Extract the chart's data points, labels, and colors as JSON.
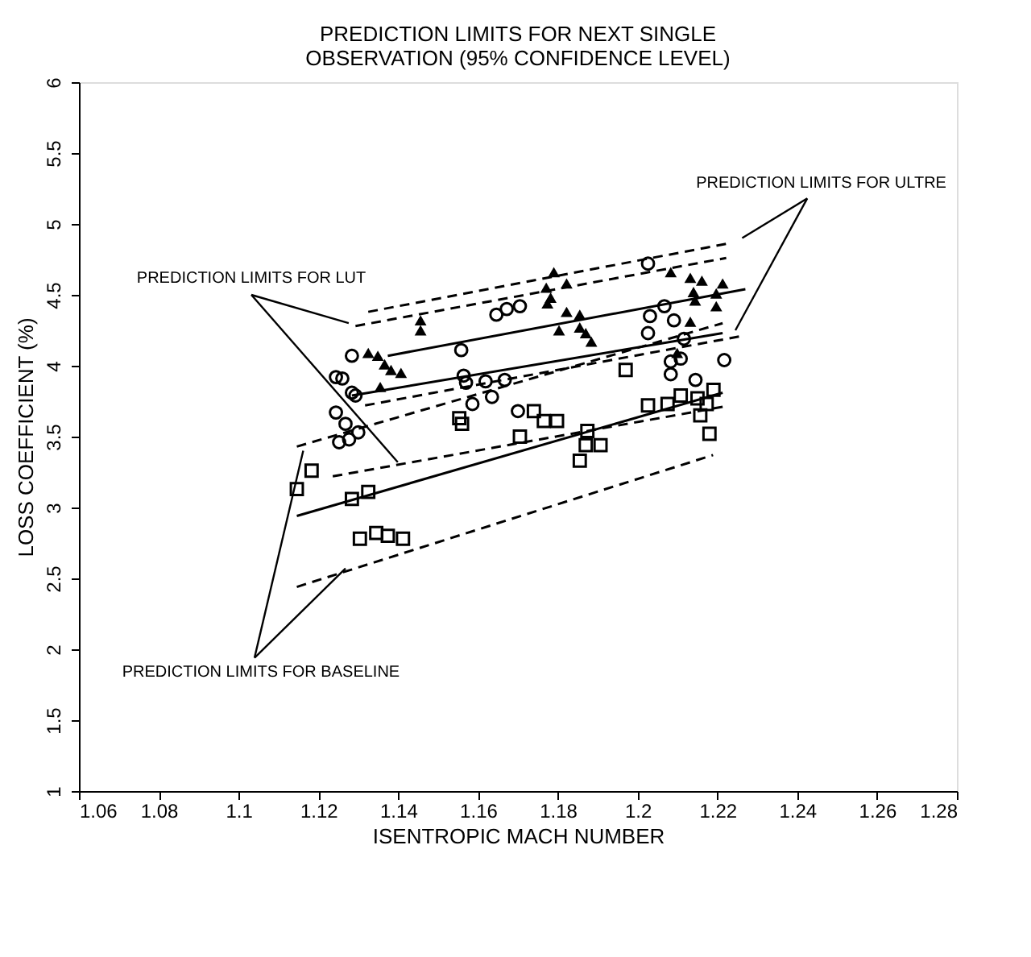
{
  "chart_data": {
    "type": "scatter",
    "title": "PREDICTION LIMITS FOR NEXT SINGLE\nOBSERVATION (95% CONFIDENCE LEVEL)",
    "xlabel": "ISENTROPIC MACH NUMBER",
    "ylabel": "LOSS COEFFICIENT (%)",
    "xlim": [
      1.06,
      1.28
    ],
    "ylim": [
      1,
      6
    ],
    "xticks": [
      1.06,
      1.08,
      1.1,
      1.12,
      1.14,
      1.16,
      1.18,
      1.2,
      1.22,
      1.24,
      1.26,
      1.28
    ],
    "yticks": [
      1,
      1.5,
      2,
      2.5,
      3,
      3.5,
      4,
      4.5,
      5,
      5.5,
      6
    ],
    "grid": false,
    "annotations": [
      {
        "text": "PREDICTION LIMITS FOR ULTRE",
        "x": 1.2245,
        "y": 4.25
      },
      {
        "text": "PREDICTION LIMITS FOR LUT",
        "x": 1.1399,
        "y": 3.32
      },
      {
        "text": "PREDICTION LIMITS FOR BASELINE",
        "x": 1.1268,
        "y": 2.57
      }
    ],
    "series": [
      {
        "type": "scatter",
        "marker": "square",
        "color": "#000000",
        "x": [
          1.1146,
          1.1183,
          1.1284,
          1.1325,
          1.1304,
          1.1345,
          1.1374,
          1.1412,
          1.1553,
          1.156,
          1.1705,
          1.174,
          1.1765,
          1.1798,
          1.1855,
          1.187,
          1.1907,
          1.1874,
          1.197,
          1.2026,
          1.2075,
          1.2108,
          1.215,
          1.2157,
          1.218,
          1.2173,
          1.219
        ],
        "values": [
          3.13,
          3.26,
          3.06,
          3.11,
          2.78,
          2.82,
          2.8,
          2.78,
          3.63,
          3.59,
          3.5,
          3.68,
          3.61,
          3.61,
          3.33,
          3.44,
          3.44,
          3.54,
          3.97,
          3.72,
          3.73,
          3.79,
          3.77,
          3.65,
          3.52,
          3.73,
          3.83
        ]
      },
      {
        "type": "scatter",
        "marker": "circle",
        "color": "#000000",
        "x": [
          1.1284,
          1.1244,
          1.126,
          1.1284,
          1.1293,
          1.1244,
          1.1268,
          1.1252,
          1.1277,
          1.13,
          1.1558,
          1.1564,
          1.157,
          1.1586,
          1.1619,
          1.1635,
          1.1667,
          1.1646,
          1.1672,
          1.1705,
          1.17,
          1.2026,
          1.2031,
          1.2067,
          1.2026,
          1.2091,
          1.2083,
          1.2083,
          1.2108,
          1.2116,
          1.2145,
          1.2217
        ],
        "values": [
          4.07,
          3.92,
          3.91,
          3.81,
          3.79,
          3.67,
          3.59,
          3.46,
          3.48,
          3.53,
          4.11,
          3.93,
          3.88,
          3.73,
          3.89,
          3.78,
          3.9,
          4.36,
          4.4,
          4.42,
          3.68,
          4.72,
          4.35,
          4.42,
          4.23,
          4.32,
          4.03,
          3.94,
          4.05,
          4.19,
          3.9,
          4.04
        ]
      },
      {
        "type": "scatter",
        "marker": "triangle",
        "color": "#000000",
        "x": [
          1.1325,
          1.1349,
          1.1366,
          1.1382,
          1.1407,
          1.1355,
          1.1456,
          1.1456,
          1.179,
          1.1771,
          1.1782,
          1.1774,
          1.1822,
          1.1822,
          1.1855,
          1.1803,
          1.1855,
          1.187,
          1.1884,
          1.2083,
          1.2132,
          1.2161,
          1.214,
          1.2144,
          1.2197,
          1.2213,
          1.2197,
          1.2132,
          1.2099
        ],
        "values": [
          4.09,
          4.07,
          4.01,
          3.97,
          3.95,
          3.85,
          4.32,
          4.25,
          4.66,
          4.55,
          4.48,
          4.44,
          4.58,
          4.38,
          4.36,
          4.25,
          4.27,
          4.23,
          4.17,
          4.66,
          4.62,
          4.6,
          4.52,
          4.46,
          4.42,
          4.58,
          4.51,
          4.31,
          4.09
        ]
      },
      {
        "type": "line",
        "line_style": "solid",
        "color": "#000000",
        "x": [
          1.1146,
          1.2213
        ],
        "values": [
          2.94,
          3.81
        ]
      },
      {
        "type": "line",
        "line_style": "dashed",
        "color": "#000000",
        "x": [
          1.1146,
          1.2189
        ],
        "values": [
          2.44,
          3.37
        ]
      },
      {
        "type": "line",
        "line_style": "dashed",
        "color": "#000000",
        "x": [
          1.1146,
          1.2213
        ],
        "values": [
          3.43,
          4.3
        ]
      },
      {
        "type": "line",
        "line_style": "solid",
        "color": "#000000",
        "x": [
          1.1284,
          1.2213
        ],
        "values": [
          3.79,
          4.23
        ]
      },
      {
        "type": "line",
        "line_style": "dashed",
        "color": "#000000",
        "x": [
          1.1236,
          1.2213
        ],
        "values": [
          3.22,
          3.71
        ]
      },
      {
        "type": "line",
        "line_style": "dashed",
        "color": "#000000",
        "x": [
          1.1293,
          1.2222
        ],
        "values": [
          4.28,
          4.76
        ]
      },
      {
        "type": "line",
        "line_style": "solid",
        "color": "#000000",
        "x": [
          1.1374,
          1.227
        ],
        "values": [
          4.07,
          4.54
        ]
      },
      {
        "type": "line",
        "line_style": "dashed",
        "color": "#000000",
        "x": [
          1.1325,
          1.2222
        ],
        "values": [
          4.38,
          4.86
        ]
      },
      {
        "type": "line",
        "line_style": "dashed",
        "color": "#000000",
        "x": [
          1.1317,
          1.2262
        ],
        "values": [
          3.72,
          4.21
        ]
      }
    ]
  }
}
